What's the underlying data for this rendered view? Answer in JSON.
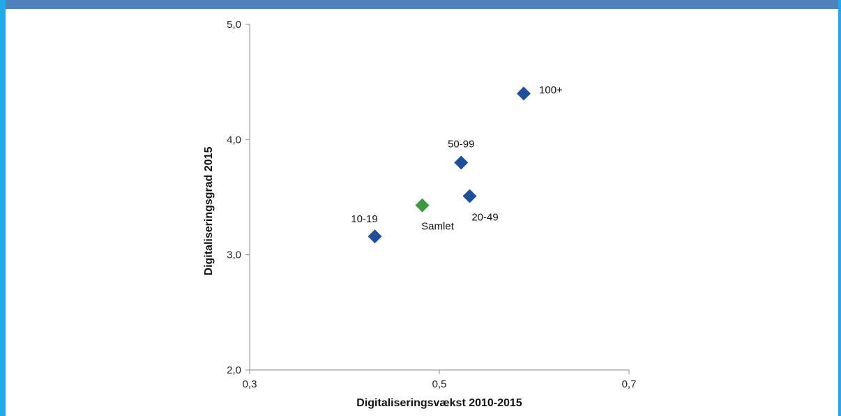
{
  "frame": {
    "top_bar_color": "#4f81bd",
    "side_bar_color": "#1fa9e8"
  },
  "chart_data": {
    "type": "scatter",
    "title": "",
    "xlabel": "Digitaliseringsvækst 2010-2015",
    "ylabel": "Digitaliseringsgrad 2015",
    "xlim": [
      0.3,
      0.7
    ],
    "ylim": [
      2.0,
      5.0
    ],
    "x_ticks": [
      {
        "value": 0.3,
        "label": "0,3"
      },
      {
        "value": 0.5,
        "label": "0,5"
      },
      {
        "value": 0.7,
        "label": "0,7"
      }
    ],
    "y_ticks": [
      {
        "value": 2.0,
        "label": "2,0"
      },
      {
        "value": 3.0,
        "label": "3,0"
      },
      {
        "value": 4.0,
        "label": "4,0"
      },
      {
        "value": 5.0,
        "label": "5,0"
      }
    ],
    "grid": false,
    "points": [
      {
        "label": "10-19",
        "x": 0.432,
        "y": 3.16,
        "color": "#1f4e9c",
        "label_pos": "above-left"
      },
      {
        "label": "Samlet",
        "x": 0.482,
        "y": 3.43,
        "color": "#3a9a3e",
        "label_pos": "below-right"
      },
      {
        "label": "20-49",
        "x": 0.532,
        "y": 3.51,
        "color": "#1f4e9c",
        "label_pos": "below-right"
      },
      {
        "label": "50-99",
        "x": 0.523,
        "y": 3.8,
        "color": "#1f4e9c",
        "label_pos": "above"
      },
      {
        "label": "100+",
        "x": 0.589,
        "y": 4.4,
        "color": "#1f4e9c",
        "label_pos": "right"
      }
    ]
  }
}
